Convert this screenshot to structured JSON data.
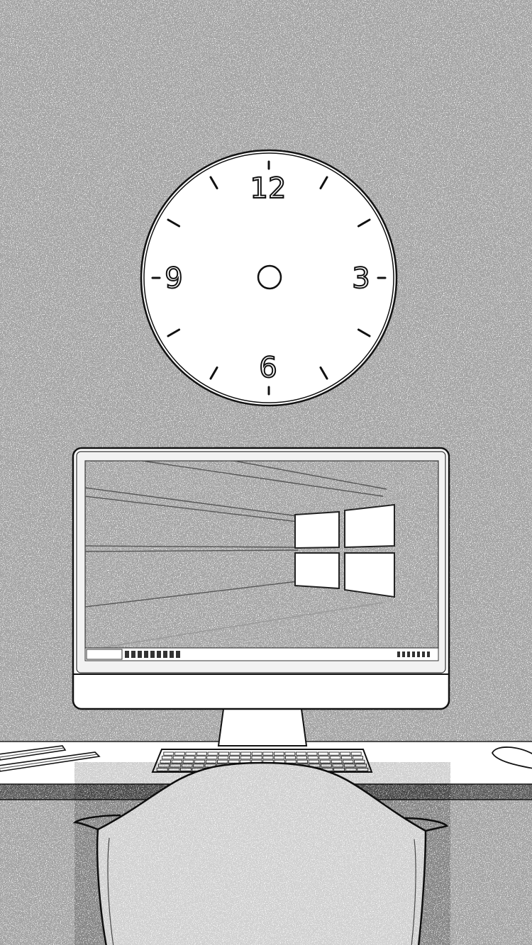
{
  "clock": {
    "numerals": {
      "twelve": "12",
      "three": "3",
      "six": "6",
      "nine": "9"
    }
  },
  "colors": {
    "ink": "#111111",
    "paper": "#fdfdfd",
    "grey": "#9a9a9a"
  },
  "icons": [
    "clock-icon",
    "windows-logo-icon",
    "keyboard-icon",
    "mouse-icon",
    "pencil-icon",
    "chair-icon"
  ]
}
